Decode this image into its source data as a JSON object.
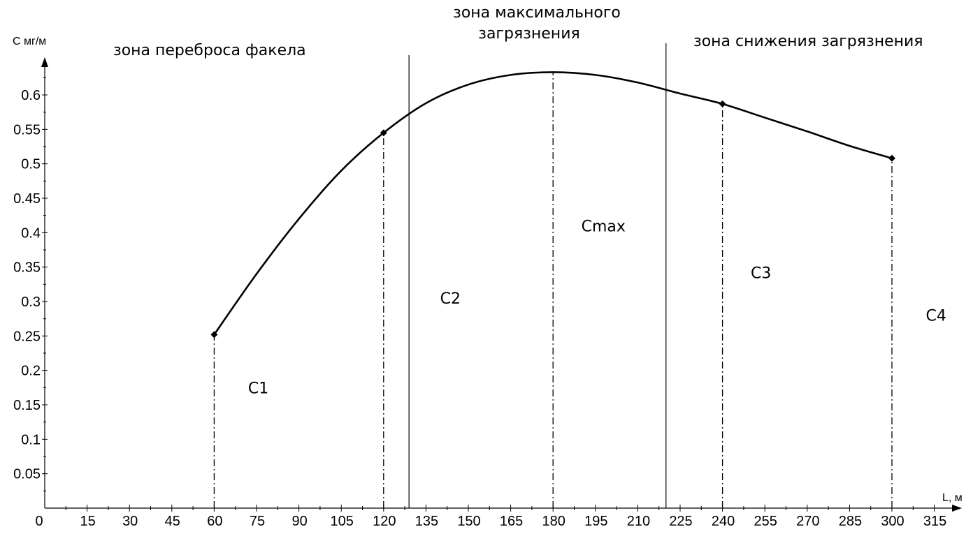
{
  "chart_data": {
    "type": "line",
    "title": "",
    "xlabel": "L, м",
    "ylabel": "С мг/м",
    "xlim": [
      0,
      320
    ],
    "ylim": [
      0,
      0.65
    ],
    "x_ticks": [
      0,
      15,
      30,
      45,
      60,
      75,
      90,
      105,
      120,
      135,
      150,
      165,
      180,
      195,
      210,
      225,
      240,
      255,
      270,
      285,
      300,
      315
    ],
    "y_ticks": [
      0.05,
      0.1,
      0.15,
      0.2,
      0.25,
      0.3,
      0.35,
      0.4,
      0.45,
      0.5,
      0.55,
      0.6
    ],
    "grid": false,
    "series": [
      {
        "x": [
          60,
          75,
          90,
          105,
          120,
          135,
          150,
          165,
          180,
          195,
          210,
          225,
          240,
          255,
          270,
          285,
          300
        ],
        "y": [
          0.252,
          0.34,
          0.42,
          0.49,
          0.545,
          0.588,
          0.615,
          0.629,
          0.633,
          0.629,
          0.618,
          0.602,
          0.587,
          0.567,
          0.547,
          0.526,
          0.508
        ]
      }
    ],
    "markers": [
      {
        "x": 60,
        "y": 0.252
      },
      {
        "x": 120,
        "y": 0.545
      },
      {
        "x": 240,
        "y": 0.587
      },
      {
        "x": 300,
        "y": 0.508
      }
    ],
    "drop_lines": [
      60,
      120,
      180,
      240,
      300
    ],
    "zone_boundaries": [
      129,
      220
    ],
    "zone_labels": {
      "left": "зона переброса факела",
      "middle_line1": "зона максимального",
      "middle_line2": "загрязнения",
      "right": "зона снижения загрязнения"
    },
    "point_labels": [
      {
        "text": "С1",
        "x": 72,
        "y": 0.175
      },
      {
        "text": "С2",
        "x": 140,
        "y": 0.305
      },
      {
        "text": "Cmax",
        "x": 190,
        "y": 0.41
      },
      {
        "text": "С3",
        "x": 250,
        "y": 0.342
      },
      {
        "text": "С4",
        "x": 312,
        "y": 0.28
      }
    ]
  }
}
